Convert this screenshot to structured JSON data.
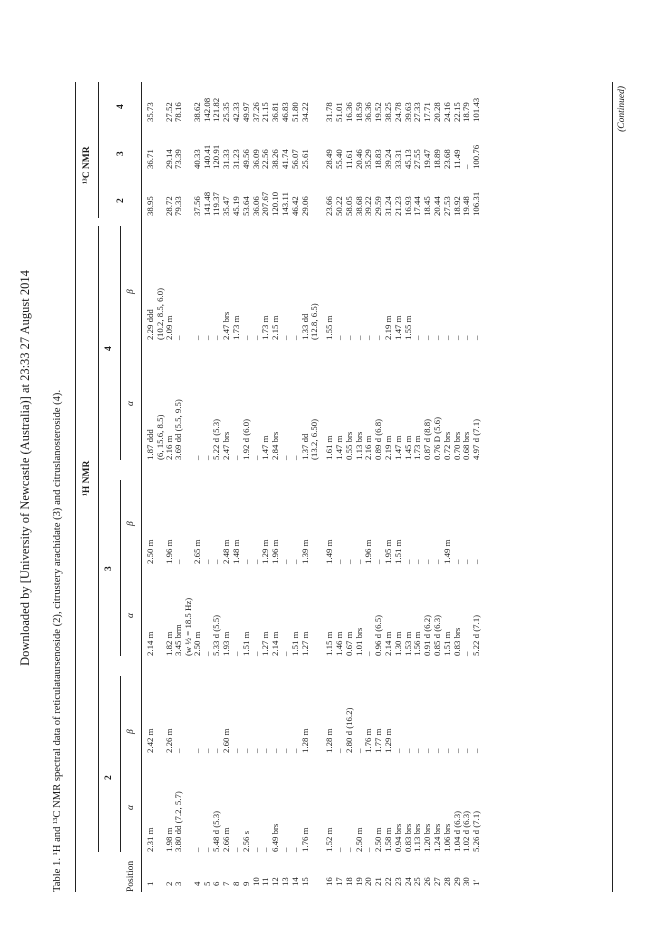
{
  "download_line": "Downloaded by [University of Newcastle (Australia)] at 23:33 27 August 2014",
  "caption": "Table 1.  ¹H and ¹³C NMR spectral data of reticulataursenoside (2), citrustery arachidate (3) and citruslanosteroside (4).",
  "table": {
    "group_h": "¹H NMR",
    "group_c": "¹³C NMR",
    "position_label": "Position",
    "compounds": [
      "2",
      "3",
      "4"
    ],
    "alpha": "α",
    "beta": "β",
    "rows": [
      [
        "1",
        "2.31 m",
        "2.42 m",
        "2.14 m",
        "2.50 m",
        "1.87 ddd\n(6, 15.6, 8.5)",
        "2.29 ddd\n(10.2, 8.5, 6.0)",
        "38.95",
        "36.71",
        "35.73"
      ],
      [
        "2",
        "1.98 m",
        "2.26 m",
        "1.82 m",
        "1.96 m",
        "2.16 m",
        "2.09 m",
        "28.72",
        "29.14",
        "27.52"
      ],
      [
        "3",
        "3.80 dd (7.2, 5.7)",
        "–",
        "3.45 brm\n(w ½ = 18.5 Hz)",
        "–",
        "3.69 dd (5.5, 9.5)",
        "–",
        "79.33",
        "73.39",
        "78.16"
      ],
      [
        "4",
        "–",
        "–",
        "2.50 m",
        "2.65 m",
        "–",
        "–",
        "37.56",
        "40.33",
        "38.62"
      ],
      [
        "5",
        "–",
        "–",
        "–",
        "–",
        "–",
        "–",
        "141.48",
        "140.41",
        "142.08"
      ],
      [
        "6",
        "5.48 d (5.3)",
        "–",
        "5.33 d (5.5)",
        "–",
        "5.22 d (5.3)",
        "–",
        "119.37",
        "120.91",
        "121.82"
      ],
      [
        "7",
        "2.66 m",
        "2.60 m",
        "1.93 m",
        "2.48 m",
        "2.47 brs",
        "2.47 brs",
        "35.47",
        "31.33",
        "25.35"
      ],
      [
        "8",
        "–",
        "–",
        "–",
        "1.48 m",
        "–",
        "1.73 m",
        "45.19",
        "31.23",
        "42.33"
      ],
      [
        "9",
        "2.56 s",
        "–",
        "1.51 m",
        "–",
        "1.92 d (6.0)",
        "–",
        "53.64",
        "49.56",
        "49.97"
      ],
      [
        "10",
        "–",
        "–",
        "–",
        "–",
        "–",
        "–",
        "36.06",
        "36.09",
        "37.26"
      ],
      [
        "11",
        "–",
        "–",
        "1.27 m",
        "1.29 m",
        "1.47 m",
        "1.73 m",
        "207.67",
        "22.56",
        "21.15"
      ],
      [
        "12",
        "6.49 brs",
        "–",
        "2.14 m",
        "1.96 m",
        "2.84 brs",
        "2.15 m",
        "120.10",
        "38.26",
        "36.81"
      ],
      [
        "13",
        "–",
        "–",
        "–",
        "–",
        "–",
        "–",
        "143.11",
        "41.74",
        "46.83"
      ],
      [
        "14",
        "–",
        "–",
        "1.51 m",
        "–",
        "–",
        "–",
        "46.42",
        "56.07",
        "51.80"
      ],
      [
        "15",
        "1.76 m",
        "1.28 m",
        "1.27 m",
        "1.39 m",
        "1.37 dd\n(13.2, 6.50)",
        "1.33 dd\n(12.8, 6.5)",
        "29.06",
        "25.61",
        "34.22"
      ],
      [
        "16",
        "1.52 m",
        "1.28 m",
        "1.15 m",
        "1.49 m",
        "1.61 m",
        "1.55 m",
        "23.66",
        "28.49",
        "31.78"
      ],
      [
        "17",
        "–",
        "–",
        "1.46 m",
        "–",
        "1.47 m",
        "–",
        "50.22",
        "55.40",
        "51.01"
      ],
      [
        "18",
        "–",
        "2.80 d (16.2)",
        "0.67 m",
        "–",
        "0.55 brs",
        "–",
        "58.05",
        "11.61",
        "16.36"
      ],
      [
        "19",
        "2.50 m",
        "–",
        "1.01 brs",
        "–",
        "1.13 brs",
        "–",
        "38.68",
        "20.46",
        "18.59"
      ],
      [
        "20",
        "–",
        "1.76 m",
        "–",
        "1.96 m",
        "2.16 m",
        "–",
        "39.22",
        "35.29",
        "36.36"
      ],
      [
        "21",
        "2.50 m",
        "1.77 m",
        "0.96 d (6.5)",
        "–",
        "0.89 d (6.8)",
        "–",
        "29.59",
        "18.83",
        "19.52"
      ],
      [
        "22",
        "1.58 m",
        "1.29 m",
        "2.14 m",
        "1.95 m",
        "2.19 m",
        "2.19 m",
        "31.24",
        "39.24",
        "38.25"
      ],
      [
        "23",
        "0.94 brs",
        "–",
        "1.30 m",
        "1.51 m",
        "1.47 m",
        "1.47 m",
        "21.23",
        "33.31",
        "24.78"
      ],
      [
        "24",
        "0.83 brs",
        "–",
        "1.53 m",
        "–",
        "1.45 m",
        "1.55 m",
        "16.93",
        "45.13",
        "39.63"
      ],
      [
        "25",
        "1.13 brs",
        "–",
        "1.56 m",
        "–",
        "1.73 m",
        "–",
        "17.44",
        "27.55",
        "27.33"
      ],
      [
        "26",
        "1.20 brs",
        "–",
        "0.91 d (6.2)",
        "–",
        "0.87 d (8.8)",
        "–",
        "18.45",
        "19.47",
        "17.71"
      ],
      [
        "27",
        "1.24 brs",
        "–",
        "0.85 d (6.3)",
        "–",
        "0.76 D (5.6)",
        "–",
        "20.44",
        "18.89",
        "20.28"
      ],
      [
        "28",
        "1.06 brs",
        "–",
        "1.51 m",
        "1.49 m",
        "0.72 brs",
        "–",
        "27.53",
        "23.68",
        "24.16"
      ],
      [
        "29",
        "1.04 d (6.3)",
        "–",
        "0.83 brs",
        "–",
        "0.70 brs",
        "–",
        "18.92",
        "11.49",
        "22.15"
      ],
      [
        "30",
        "1.02 d (6.3)",
        "–",
        "–",
        "–",
        "0.68 brs",
        "–",
        "19.48",
        "–",
        "18.79"
      ],
      [
        "1′",
        "5.26 d (7.1)",
        "–",
        "5.22 d (7.1)",
        "–",
        "4.97 d (7.1)",
        "–",
        "106.31",
        "100.76",
        "101.43"
      ]
    ],
    "continued": "(Continued)"
  }
}
